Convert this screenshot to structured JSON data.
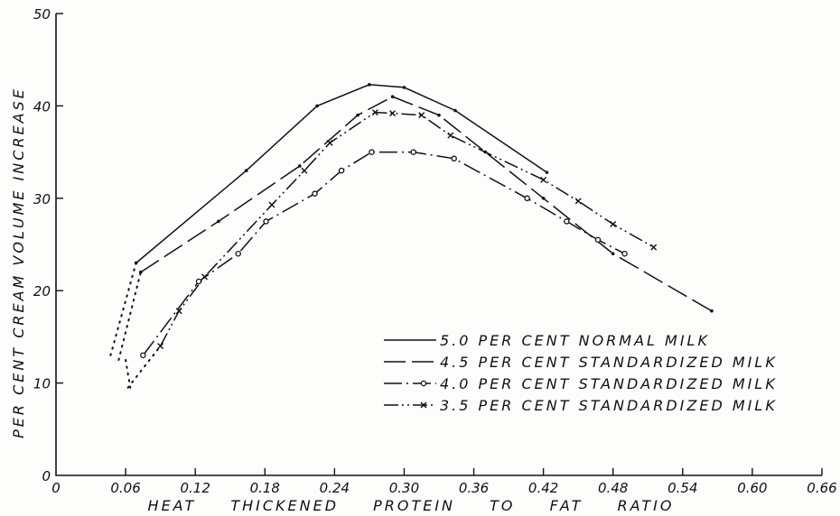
{
  "chart_data": {
    "type": "line",
    "title": "",
    "xlabel": "HEAT THICKENED PROTEIN TO FAT RATIO",
    "ylabel": "PER CENT CREAM VOLUME INCREASE",
    "xlim": [
      0,
      0.66
    ],
    "ylim": [
      0,
      50
    ],
    "xticks": [
      "0",
      "0.06",
      "0.12",
      "0.18",
      "0.24",
      "0.30",
      "0.36",
      "0.42",
      "0.48",
      "0.54",
      "0.60",
      "0.66"
    ],
    "yticks": [
      "0",
      "10",
      "20",
      "30",
      "40",
      "50"
    ],
    "grid": false,
    "legend_position": "center-right",
    "series": [
      {
        "name": "5.0 PER CENT NORMAL MILK",
        "style": "solid",
        "marker": "dot",
        "extrapolated": [
          [
            0.047,
            13
          ],
          [
            0.069,
            23
          ]
        ],
        "points": [
          [
            0.069,
            23
          ],
          [
            0.164,
            33
          ],
          [
            0.225,
            40
          ],
          [
            0.27,
            42.3
          ],
          [
            0.3,
            42
          ],
          [
            0.344,
            39.5
          ],
          [
            0.423,
            32.8
          ]
        ]
      },
      {
        "name": "4.5 PER CENT STANDARDIZED MILK",
        "style": "long-dash",
        "marker": "dot",
        "extrapolated": [
          [
            0.054,
            12.5
          ],
          [
            0.073,
            22
          ]
        ],
        "points": [
          [
            0.073,
            22
          ],
          [
            0.14,
            27.5
          ],
          [
            0.21,
            33.5
          ],
          [
            0.26,
            39
          ],
          [
            0.29,
            41
          ],
          [
            0.33,
            39
          ],
          [
            0.37,
            35
          ],
          [
            0.42,
            30
          ],
          [
            0.48,
            24
          ],
          [
            0.565,
            17.8
          ]
        ]
      },
      {
        "name": "4.0 PER CENT STANDARDIZED MILK",
        "style": "dash-dot",
        "marker": "circle",
        "extrapolated": [
          [
            0.06,
            12.5
          ],
          [
            0.064,
            9.5
          ]
        ],
        "points": [
          [
            0.075,
            13
          ],
          [
            0.123,
            21
          ],
          [
            0.157,
            24
          ],
          [
            0.181,
            27.5
          ],
          [
            0.223,
            30.5
          ],
          [
            0.246,
            33
          ],
          [
            0.272,
            35
          ],
          [
            0.308,
            35
          ],
          [
            0.343,
            34.3
          ],
          [
            0.406,
            30
          ],
          [
            0.44,
            27.5
          ],
          [
            0.467,
            25.5
          ],
          [
            0.49,
            24
          ]
        ]
      },
      {
        "name": "3.5 PER CENT STANDARDIZED MILK",
        "style": "dash-dot-dot",
        "marker": "x",
        "extrapolated": [
          [
            0.062,
            9.5
          ],
          [
            0.09,
            14
          ]
        ],
        "points": [
          [
            0.09,
            14
          ],
          [
            0.106,
            17.8
          ],
          [
            0.128,
            21.5
          ],
          [
            0.186,
            29.3
          ],
          [
            0.214,
            33
          ],
          [
            0.236,
            36
          ],
          [
            0.275,
            39.3
          ],
          [
            0.29,
            39.2
          ],
          [
            0.315,
            39
          ],
          [
            0.34,
            36.8
          ],
          [
            0.42,
            32
          ],
          [
            0.45,
            29.7
          ],
          [
            0.48,
            27.2
          ],
          [
            0.515,
            24.7
          ]
        ]
      }
    ]
  }
}
